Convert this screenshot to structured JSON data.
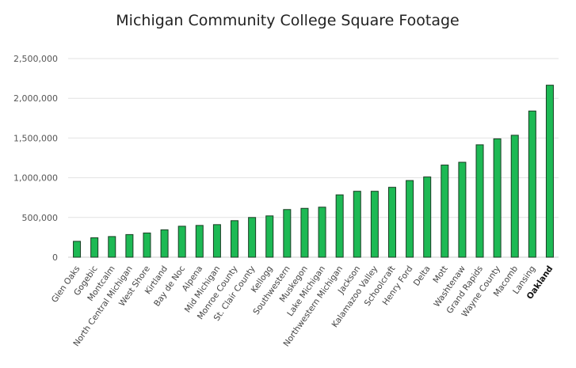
{
  "chart_data": {
    "type": "bar",
    "title": "Michigan Community College Square Footage",
    "xlabel": "",
    "ylabel": "",
    "ylim": [
      0,
      2500000
    ],
    "yticks": [
      0,
      500000,
      1000000,
      1500000,
      2000000,
      2500000
    ],
    "ytick_labels": [
      "0",
      "500,000",
      "1,000,000",
      "1,500,000",
      "2,000,000",
      "2,500,000"
    ],
    "grid": true,
    "highlighted_category": "Oakland",
    "bar_color": "#1db954",
    "bar_edge_color": "#1a3d24",
    "categories": [
      "Glen Oaks",
      "Gogebic",
      "Montcalm",
      "North Central Michigan",
      "West Shore",
      "Kirtland",
      "Bay de Noc",
      "Alpena",
      "Mid Michigan",
      "Monroe County",
      "St. Clair County",
      "Kellogg",
      "Southwestern",
      "Muskegon",
      "Lake Michigan",
      "Northwestern Michigan",
      "Jackson",
      "Kalamazoo Valley",
      "Schoolcraft",
      "Henry Ford",
      "Delta",
      "Mott",
      "Washtenaw",
      "Grand Rapids",
      "Wayne County",
      "Macomb",
      "Lansing",
      "Oakland"
    ],
    "values": [
      200000,
      245000,
      260000,
      285000,
      305000,
      345000,
      390000,
      400000,
      410000,
      460000,
      500000,
      520000,
      600000,
      615000,
      630000,
      785000,
      830000,
      830000,
      880000,
      965000,
      1010000,
      1160000,
      1195000,
      1415000,
      1490000,
      1535000,
      1840000,
      2165000
    ]
  }
}
